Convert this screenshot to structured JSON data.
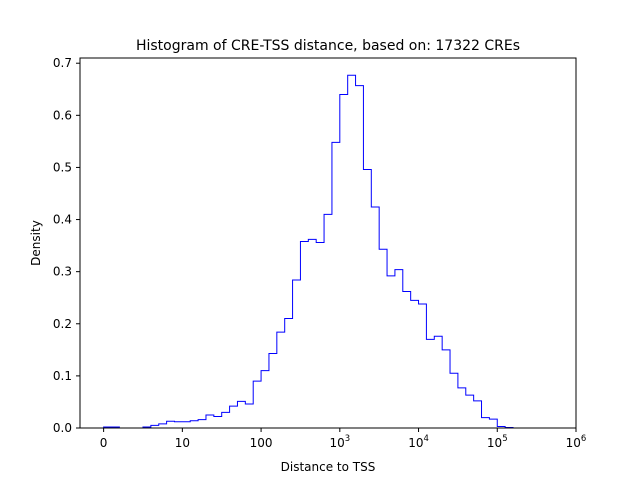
{
  "chart_data": {
    "type": "histogram",
    "title": "Histogram of CRE-TSS distance, based on: 17322 CREs",
    "xlabel": "Distance to TSS",
    "ylabel": "Density",
    "x_scale": "log10(distance + 1)",
    "xlim": [
      -0.3,
      6.0
    ],
    "ylim": [
      0,
      0.71
    ],
    "x_ticks": [
      {
        "value": 0,
        "label": "0"
      },
      {
        "value": 1,
        "label": "10"
      },
      {
        "value": 2,
        "label": "100"
      },
      {
        "value": 3,
        "label": "10",
        "exp": "3"
      },
      {
        "value": 4,
        "label": "10",
        "exp": "4"
      },
      {
        "value": 5,
        "label": "10",
        "exp": "5"
      },
      {
        "value": 6,
        "label": "10",
        "exp": "6"
      }
    ],
    "y_ticks": [
      {
        "value": 0.0,
        "label": "0.0"
      },
      {
        "value": 0.1,
        "label": "0.1"
      },
      {
        "value": 0.2,
        "label": "0.2"
      },
      {
        "value": 0.3,
        "label": "0.3"
      },
      {
        "value": 0.4,
        "label": "0.4"
      },
      {
        "value": 0.5,
        "label": "0.5"
      },
      {
        "value": 0.6,
        "label": "0.6"
      },
      {
        "value": 0.7,
        "label": "0.7"
      }
    ],
    "bin_edges": [
      0.0,
      0.1,
      0.2,
      0.3,
      0.4,
      0.5,
      0.6,
      0.7,
      0.8,
      0.9,
      1.0,
      1.1,
      1.2,
      1.3,
      1.4,
      1.5,
      1.6,
      1.7,
      1.8,
      1.9,
      2.0,
      2.1,
      2.2,
      2.3,
      2.4,
      2.5,
      2.6,
      2.7,
      2.8,
      2.9,
      3.0,
      3.1,
      3.2,
      3.3,
      3.4,
      3.5,
      3.6,
      3.7,
      3.8,
      3.9,
      4.0,
      4.1,
      4.2,
      4.3,
      4.4,
      4.5,
      4.6,
      4.7,
      4.8,
      4.9,
      5.0,
      5.1,
      5.2,
      5.3,
      5.4,
      5.5,
      5.6,
      5.7
    ],
    "density": [
      0.002,
      0.002,
      0.0,
      0.0,
      0.0,
      0.002,
      0.005,
      0.008,
      0.013,
      0.012,
      0.012,
      0.014,
      0.016,
      0.025,
      0.022,
      0.03,
      0.042,
      0.051,
      0.046,
      0.09,
      0.11,
      0.143,
      0.184,
      0.21,
      0.284,
      0.358,
      0.362,
      0.356,
      0.41,
      0.548,
      0.64,
      0.677,
      0.657,
      0.496,
      0.424,
      0.343,
      0.292,
      0.304,
      0.262,
      0.245,
      0.238,
      0.17,
      0.176,
      0.15,
      0.105,
      0.077,
      0.063,
      0.052,
      0.02,
      0.017,
      0.003,
      0.001,
      0.0,
      0.0,
      0.0,
      0.0,
      0.0
    ],
    "color": "#0000ff",
    "grid": false
  }
}
